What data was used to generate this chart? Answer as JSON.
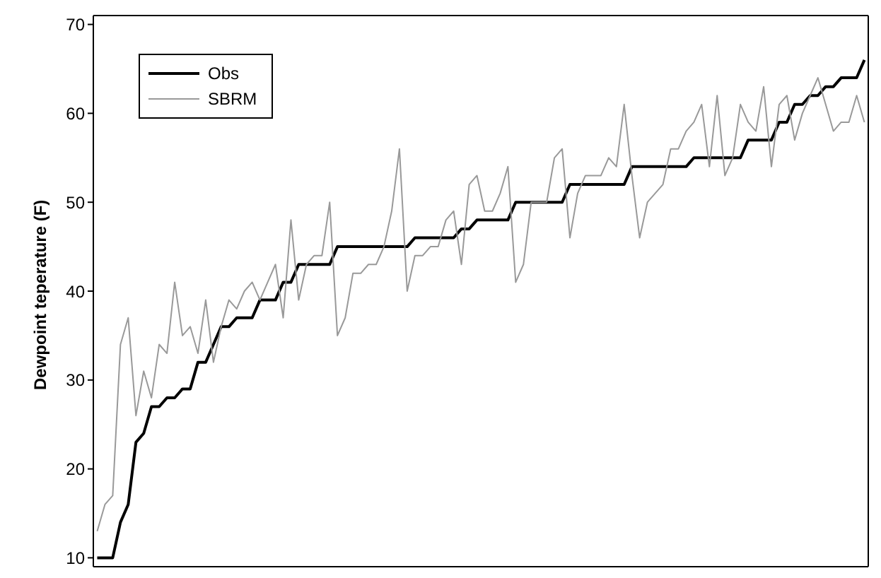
{
  "chart_data": {
    "type": "line",
    "ylabel": "Dewpoint teperature (F)",
    "categories": [
      null,
      null,
      null,
      null,
      null,
      null,
      null,
      null,
      null,
      null,
      null,
      null,
      null,
      null,
      null,
      null,
      null,
      null,
      null,
      null,
      null,
      null,
      null,
      null,
      null,
      null,
      null,
      null,
      null,
      null,
      null,
      null,
      null,
      null,
      null,
      null,
      null,
      null,
      null,
      null,
      null,
      null,
      null,
      null,
      null,
      null,
      null,
      null,
      null,
      null,
      null,
      null,
      null,
      null,
      null,
      null,
      null,
      null,
      null,
      null,
      null,
      null,
      null,
      null,
      null,
      null,
      null,
      null,
      null,
      null,
      null,
      null,
      null,
      null,
      null,
      null,
      null,
      null,
      null,
      null,
      null,
      null,
      null,
      null,
      null,
      null,
      null,
      null,
      null,
      null,
      null,
      null,
      null,
      null,
      null,
      null,
      null,
      null,
      null,
      null
    ],
    "series": [
      {
        "name": "Obs",
        "color": "#000000",
        "values": [
          10,
          10,
          10,
          14,
          16,
          23,
          24,
          27,
          27,
          28,
          28,
          29,
          29,
          32,
          32,
          34,
          36,
          36,
          37,
          37,
          37,
          39,
          39,
          39,
          41,
          41,
          43,
          43,
          43,
          43,
          43,
          45,
          45,
          45,
          45,
          45,
          45,
          45,
          45,
          45,
          45,
          46,
          46,
          46,
          46,
          46,
          46,
          47,
          47,
          48,
          48,
          48,
          48,
          48,
          50,
          50,
          50,
          50,
          50,
          50,
          50,
          52,
          52,
          52,
          52,
          52,
          52,
          52,
          52,
          54,
          54,
          54,
          54,
          54,
          54,
          54,
          54,
          55,
          55,
          55,
          55,
          55,
          55,
          55,
          57,
          57,
          57,
          57,
          59,
          59,
          61,
          61,
          62,
          62,
          63,
          63,
          64,
          64,
          64,
          66
        ]
      },
      {
        "name": "SBRM",
        "color": "#999999",
        "values": [
          13,
          16,
          17,
          34,
          37,
          26,
          31,
          28,
          34,
          33,
          41,
          35,
          36,
          33,
          39,
          32,
          36,
          39,
          38,
          40,
          41,
          39,
          41,
          43,
          37,
          48,
          39,
          43,
          44,
          44,
          50,
          35,
          37,
          42,
          42,
          43,
          43,
          45,
          49,
          56,
          40,
          44,
          44,
          45,
          45,
          48,
          49,
          43,
          52,
          53,
          49,
          49,
          51,
          54,
          41,
          43,
          50,
          50,
          50,
          55,
          56,
          46,
          51,
          53,
          53,
          53,
          55,
          54,
          61,
          53,
          46,
          50,
          51,
          52,
          56,
          56,
          58,
          59,
          61,
          54,
          62,
          53,
          55,
          61,
          59,
          58,
          63,
          54,
          61,
          62,
          57,
          60,
          62,
          64,
          61,
          58,
          59,
          59,
          62,
          59
        ]
      }
    ],
    "ylim": [
      9,
      71
    ],
    "yticks": [
      10,
      20,
      30,
      40,
      50,
      60,
      70
    ],
    "legend": "top left",
    "tick_labels": "y",
    "marker": "none",
    "line_style": "solid"
  }
}
